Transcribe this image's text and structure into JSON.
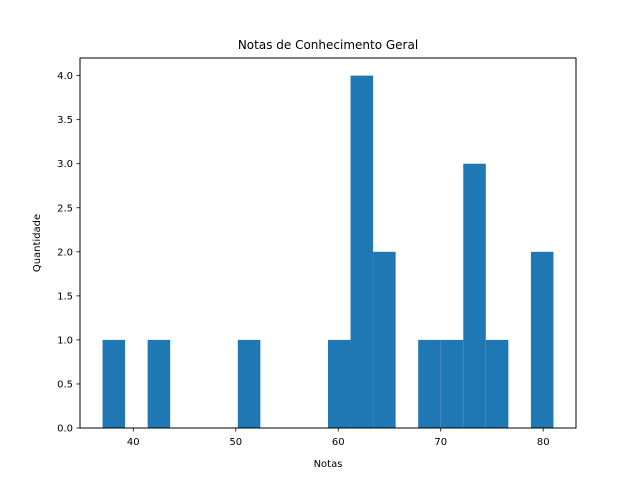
{
  "chart_data": {
    "type": "bar",
    "title": "Notas de Conhecimento Geral",
    "xlabel": "Notas",
    "ylabel": "Quantidade",
    "bin_start": 37,
    "bin_width": 2.2,
    "counts": [
      1,
      0,
      1,
      0,
      0,
      0,
      1,
      0,
      0,
      0,
      1,
      4,
      2,
      0,
      1,
      1,
      3,
      1,
      0,
      2
    ],
    "xlim": [
      34.8,
      83.2
    ],
    "ylim": [
      0,
      4.2
    ],
    "xticks": [
      40,
      50,
      60,
      70,
      80
    ],
    "xtick_labels": [
      "40",
      "50",
      "60",
      "70",
      "80"
    ],
    "yticks": [
      0,
      0.5,
      1,
      1.5,
      2,
      2.5,
      3,
      3.5,
      4
    ],
    "ytick_labels": [
      "0.0",
      "0.5",
      "1.0",
      "1.5",
      "2.0",
      "2.5",
      "3.0",
      "3.5",
      "4.0"
    ],
    "grid": false,
    "bar_color": "#1f77b4"
  }
}
